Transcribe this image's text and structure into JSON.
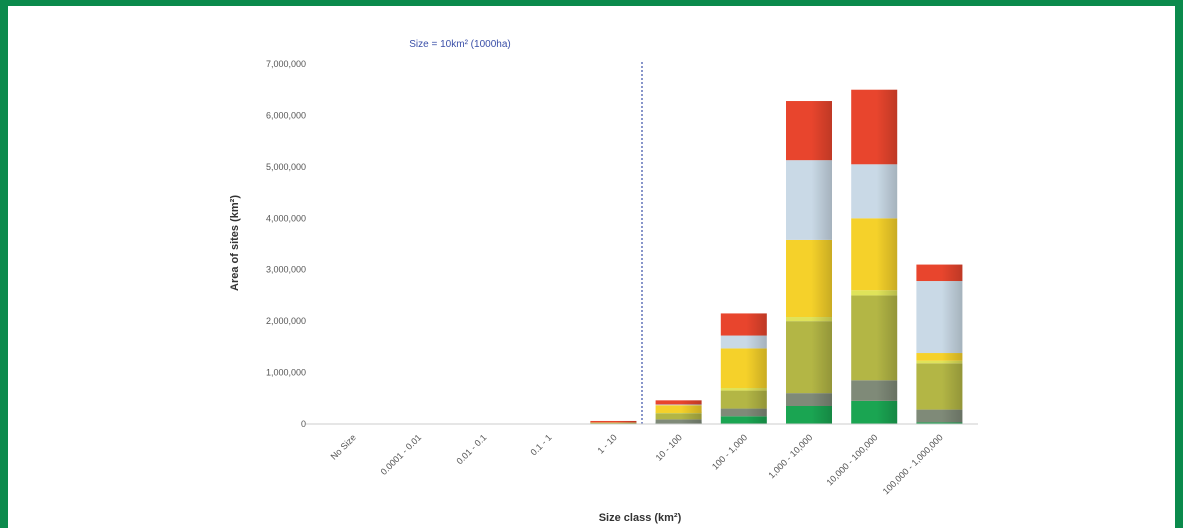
{
  "chart_data": {
    "type": "bar",
    "stacked": true,
    "title": "",
    "annotation": "Size = 10km² (1000ha)",
    "xlabel": "Size class (km²)",
    "ylabel": "Area of sites (km²)",
    "ylim": [
      0,
      7000000
    ],
    "yticks": [
      "0",
      "1,000,000",
      "2,000,000",
      "3,000,000",
      "4,000,000",
      "5,000,000",
      "6,000,000",
      "7,000,000"
    ],
    "ytick_values": [
      0,
      1000000,
      2000000,
      3000000,
      4000000,
      5000000,
      6000000,
      7000000
    ],
    "categories": [
      "No Size",
      "0.0001 - 0.01",
      "0.01 - 0.1",
      "0.1 - 1",
      "1 - 10",
      "10 - 100",
      "100 - 1,000",
      "1,000 - 10,000",
      "10,000 - 100,000",
      "100,000 - 1,000,000"
    ],
    "reference_line_after_category": 4,
    "grid": false,
    "series": [
      {
        "color": "#1aa552",
        "values": [
          0,
          0,
          0,
          0,
          0,
          10000,
          150000,
          350000,
          450000,
          30000
        ]
      },
      {
        "color": "#7f8a78",
        "values": [
          0,
          0,
          0,
          0,
          5000,
          80000,
          150000,
          250000,
          400000,
          250000
        ]
      },
      {
        "color": "#b3b645",
        "values": [
          0,
          0,
          0,
          0,
          15000,
          120000,
          350000,
          1400000,
          1650000,
          900000
        ]
      },
      {
        "color": "#dfe35a",
        "values": [
          0,
          0,
          0,
          0,
          0,
          5000,
          50000,
          80000,
          100000,
          50000
        ]
      },
      {
        "color": "#f5d12a",
        "values": [
          0,
          0,
          0,
          0,
          5000,
          150000,
          770000,
          1500000,
          1400000,
          150000
        ]
      },
      {
        "color": "#c9d9e6",
        "values": [
          0,
          0,
          0,
          0,
          5000,
          15000,
          250000,
          1550000,
          1050000,
          1400000
        ]
      },
      {
        "color": "#e8452d",
        "values": [
          0,
          0,
          0,
          0,
          5000,
          80000,
          430000,
          1150000,
          1450000,
          320000
        ]
      }
    ]
  }
}
